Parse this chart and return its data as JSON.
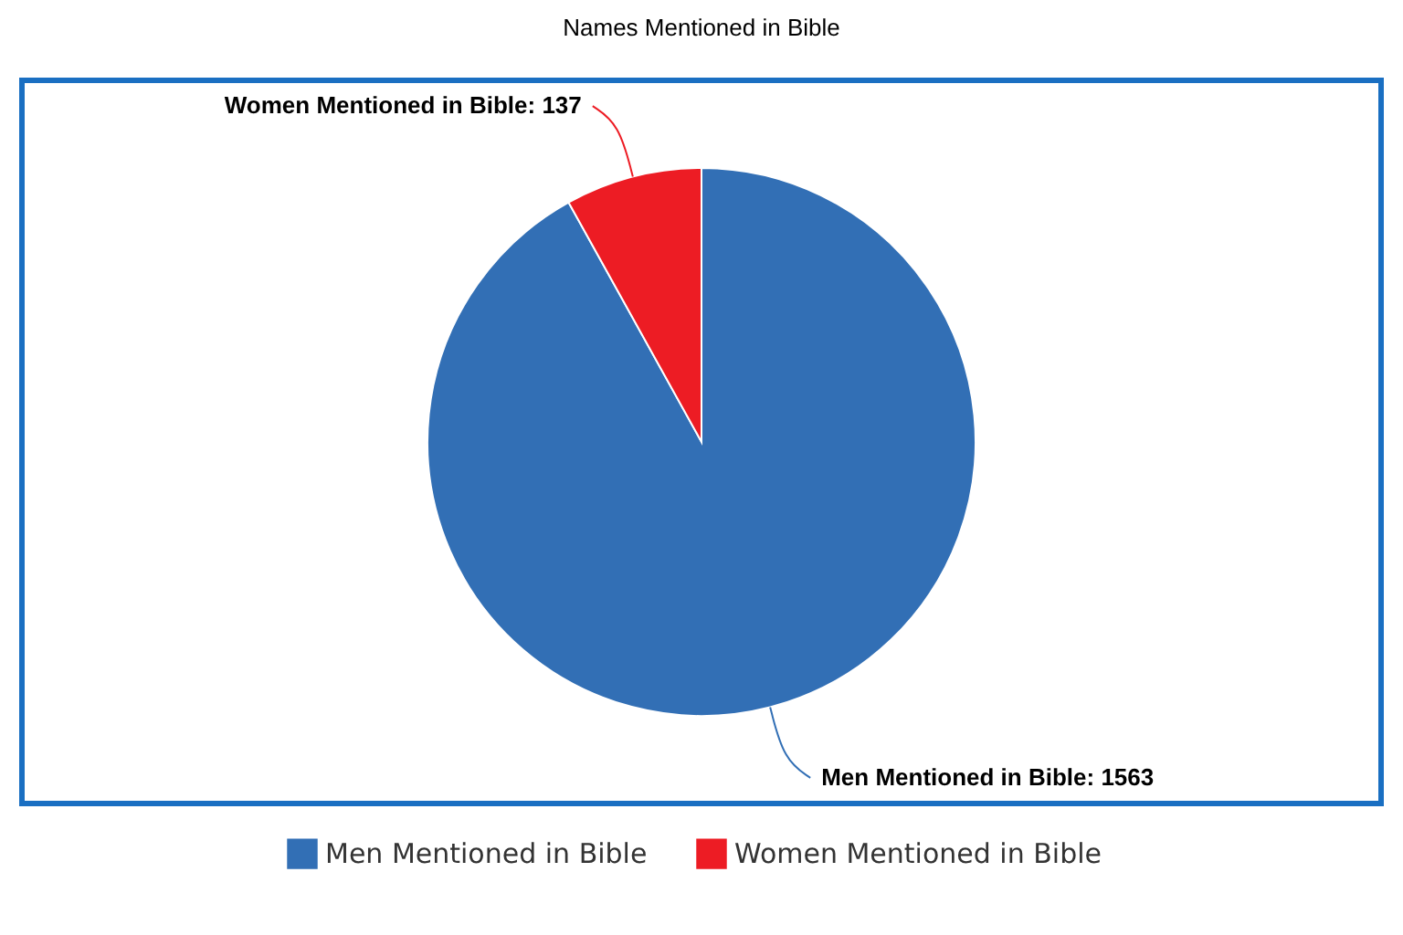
{
  "chart_data": {
    "type": "pie",
    "title": "Names Mentioned in Bible",
    "categories": [
      "Men Mentioned in Bible",
      "Women Mentioned in Bible"
    ],
    "values": [
      1563,
      137
    ],
    "colors": [
      "#326fb5",
      "#ed1c24"
    ],
    "value_labels": [
      "Men Mentioned in Bible: 1563",
      "Women Mentioned in Bible: 137"
    ],
    "legend": "bottom"
  }
}
